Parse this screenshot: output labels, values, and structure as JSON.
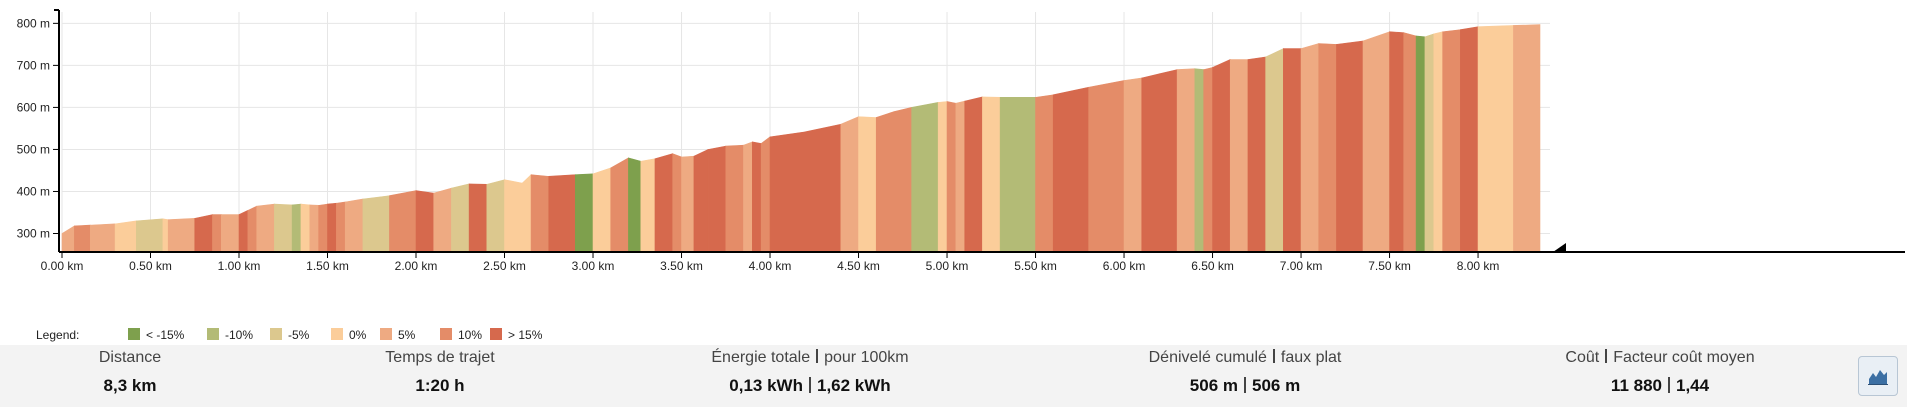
{
  "chart_data": {
    "type": "area",
    "title": "",
    "xlabel": "",
    "ylabel": "",
    "xlim": [
      0,
      8.35
    ],
    "ylim": [
      256,
      827
    ],
    "grid": true,
    "x_ticks": [
      {
        "value": 0,
        "label": "0.00 km"
      },
      {
        "value": 0.5,
        "label": "0.50 km"
      },
      {
        "value": 1.0,
        "label": "1.00 km"
      },
      {
        "value": 1.5,
        "label": "1.50 km"
      },
      {
        "value": 2.0,
        "label": "2.00 km"
      },
      {
        "value": 2.5,
        "label": "2.50 km"
      },
      {
        "value": 3.0,
        "label": "3.00 km"
      },
      {
        "value": 3.5,
        "label": "3.50 km"
      },
      {
        "value": 4.0,
        "label": "4.00 km"
      },
      {
        "value": 4.5,
        "label": "4.50 km"
      },
      {
        "value": 5.0,
        "label": "5.00 km"
      },
      {
        "value": 5.5,
        "label": "5.50 km"
      },
      {
        "value": 6.0,
        "label": "6.00 km"
      },
      {
        "value": 6.5,
        "label": "6.50 km"
      },
      {
        "value": 7.0,
        "label": "7.00 km"
      },
      {
        "value": 7.5,
        "label": "7.50 km"
      },
      {
        "value": 8.0,
        "label": "8.00 km"
      }
    ],
    "y_ticks": [
      {
        "value": 300,
        "label": "300 m"
      },
      {
        "value": 400,
        "label": "400 m"
      },
      {
        "value": 500,
        "label": "500 m"
      },
      {
        "value": 600,
        "label": "600 m"
      },
      {
        "value": 700,
        "label": "700 m"
      },
      {
        "value": 800,
        "label": "800 m"
      }
    ],
    "legend": {
      "title": "Legend:",
      "placement": "bottom-left",
      "items": [
        {
          "label": "< -15%",
          "color": "#7ea04d"
        },
        {
          "label": "-10%",
          "color": "#b3bb76"
        },
        {
          "label": "-5%",
          "color": "#dcc88e"
        },
        {
          "label": "0%",
          "color": "#fbcd9a"
        },
        {
          "label": "5%",
          "color": "#eeaa82"
        },
        {
          "label": "10%",
          "color": "#e48c68"
        },
        {
          "label": "> 15%",
          "color": "#d6694d"
        }
      ]
    },
    "grade_colors": [
      "#7ea04d",
      "#b3bb76",
      "#dcc88e",
      "#fbcd9a",
      "#eeaa82",
      "#e48c68",
      "#d6694d"
    ],
    "series": [
      {
        "x": [
          0,
          0.07,
          0.16,
          0.3,
          0.42,
          0.57,
          0.6,
          0.75,
          0.85,
          0.9,
          1.0,
          1.05,
          1.1,
          1.2,
          1.3,
          1.35,
          1.4,
          1.45,
          1.5,
          1.55,
          1.6,
          1.7,
          1.85,
          2.0,
          2.1,
          2.2,
          2.3,
          2.4,
          2.5,
          2.6,
          2.65,
          2.75,
          2.9,
          3.0,
          3.1,
          3.2,
          3.27,
          3.35,
          3.45,
          3.5,
          3.57,
          3.65,
          3.75,
          3.85,
          3.9,
          3.95,
          4.0,
          4.2,
          4.4,
          4.5,
          4.6,
          4.7,
          4.8,
          4.95,
          5.0,
          5.05,
          5.1,
          5.2,
          5.3,
          5.5,
          5.6,
          5.8,
          6.0,
          6.1,
          6.2,
          6.3,
          6.4,
          6.45,
          6.5,
          6.6,
          6.7,
          6.8,
          6.9,
          7.0,
          7.1,
          7.2,
          7.35,
          7.5,
          7.58,
          7.65,
          7.7,
          7.75,
          7.8,
          7.9,
          8.0,
          8.2,
          8.35
        ],
        "y": [
          300,
          318,
          320,
          323,
          330,
          335,
          333,
          336,
          345,
          345,
          345,
          355,
          365,
          370,
          368,
          370,
          368,
          367,
          370,
          372,
          375,
          382,
          390,
          402,
          396,
          408,
          418,
          417,
          428,
          420,
          440,
          436,
          440,
          442,
          456,
          480,
          472,
          478,
          490,
          482,
          484,
          500,
          508,
          510,
          518,
          514,
          530,
          542,
          560,
          578,
          576,
          590,
          600,
          612,
          614,
          610,
          615,
          625,
          624,
          624,
          630,
          648,
          664,
          670,
          680,
          690,
          692,
          690,
          695,
          714,
          714,
          720,
          740,
          740,
          752,
          750,
          758,
          780,
          778,
          770,
          768,
          775,
          780,
          785,
          792,
          795,
          797
        ]
      }
    ],
    "segment_grades": [
      4,
      5,
      4,
      3,
      2,
      3,
      4,
      6,
      5,
      4,
      6,
      5,
      4,
      2,
      1,
      3,
      4,
      5,
      6,
      5,
      4,
      2,
      5,
      6,
      4,
      2,
      6,
      2,
      3,
      3,
      5,
      6,
      0,
      3,
      5,
      0,
      3,
      6,
      5,
      4,
      6,
      6,
      5,
      4,
      6,
      5,
      6,
      6,
      4,
      3,
      5,
      5,
      1,
      3,
      5,
      4,
      6,
      3,
      1,
      5,
      6,
      5,
      4,
      6,
      6,
      4,
      1,
      5,
      6,
      4,
      6,
      2,
      6,
      4,
      5,
      6,
      4,
      6,
      5,
      0,
      2,
      3,
      5,
      6,
      3,
      4
    ]
  },
  "stats": [
    {
      "label_a": "Distance",
      "label_b": "",
      "value_a": "8,3 km",
      "value_b": ""
    },
    {
      "label_a": "Temps de trajet",
      "label_b": "",
      "value_a": "1:20 h",
      "value_b": ""
    },
    {
      "label_a": "Énergie totale",
      "label_b": "pour 100km",
      "value_a": "0,13 kWh",
      "value_b": "1,62 kWh"
    },
    {
      "label_a": "Dénivelé cumulé",
      "label_b": "faux plat",
      "value_a": "506 m",
      "value_b": "506 m"
    },
    {
      "label_a": "Coût",
      "label_b": "Facteur coût moyen",
      "value_a": "11 880",
      "value_b": "1,44"
    }
  ],
  "profile_button": {
    "icon": "elevation-profile-icon"
  }
}
